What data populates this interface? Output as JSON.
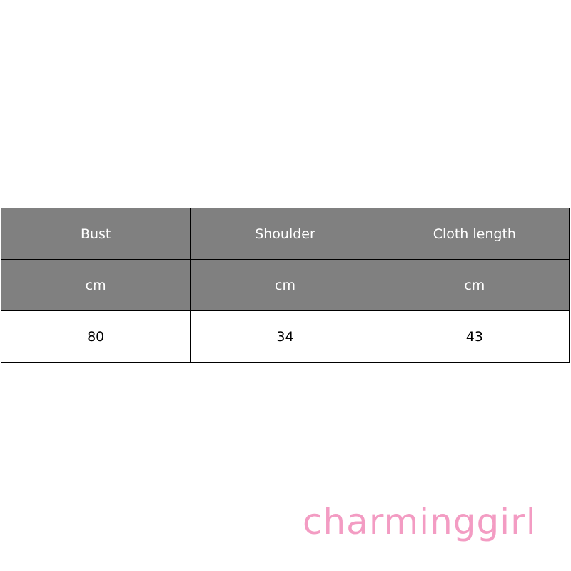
{
  "table": {
    "headers": [
      "Bust",
      "Shoulder",
      "Cloth length"
    ],
    "units": [
      "cm",
      "cm",
      "cm"
    ],
    "values": [
      "80",
      "34",
      "43"
    ]
  },
  "logo": {
    "text": "charminggirl",
    "color": "#f39cc3"
  },
  "colors": {
    "header_bg": "#808080",
    "header_text": "#ffffff"
  }
}
